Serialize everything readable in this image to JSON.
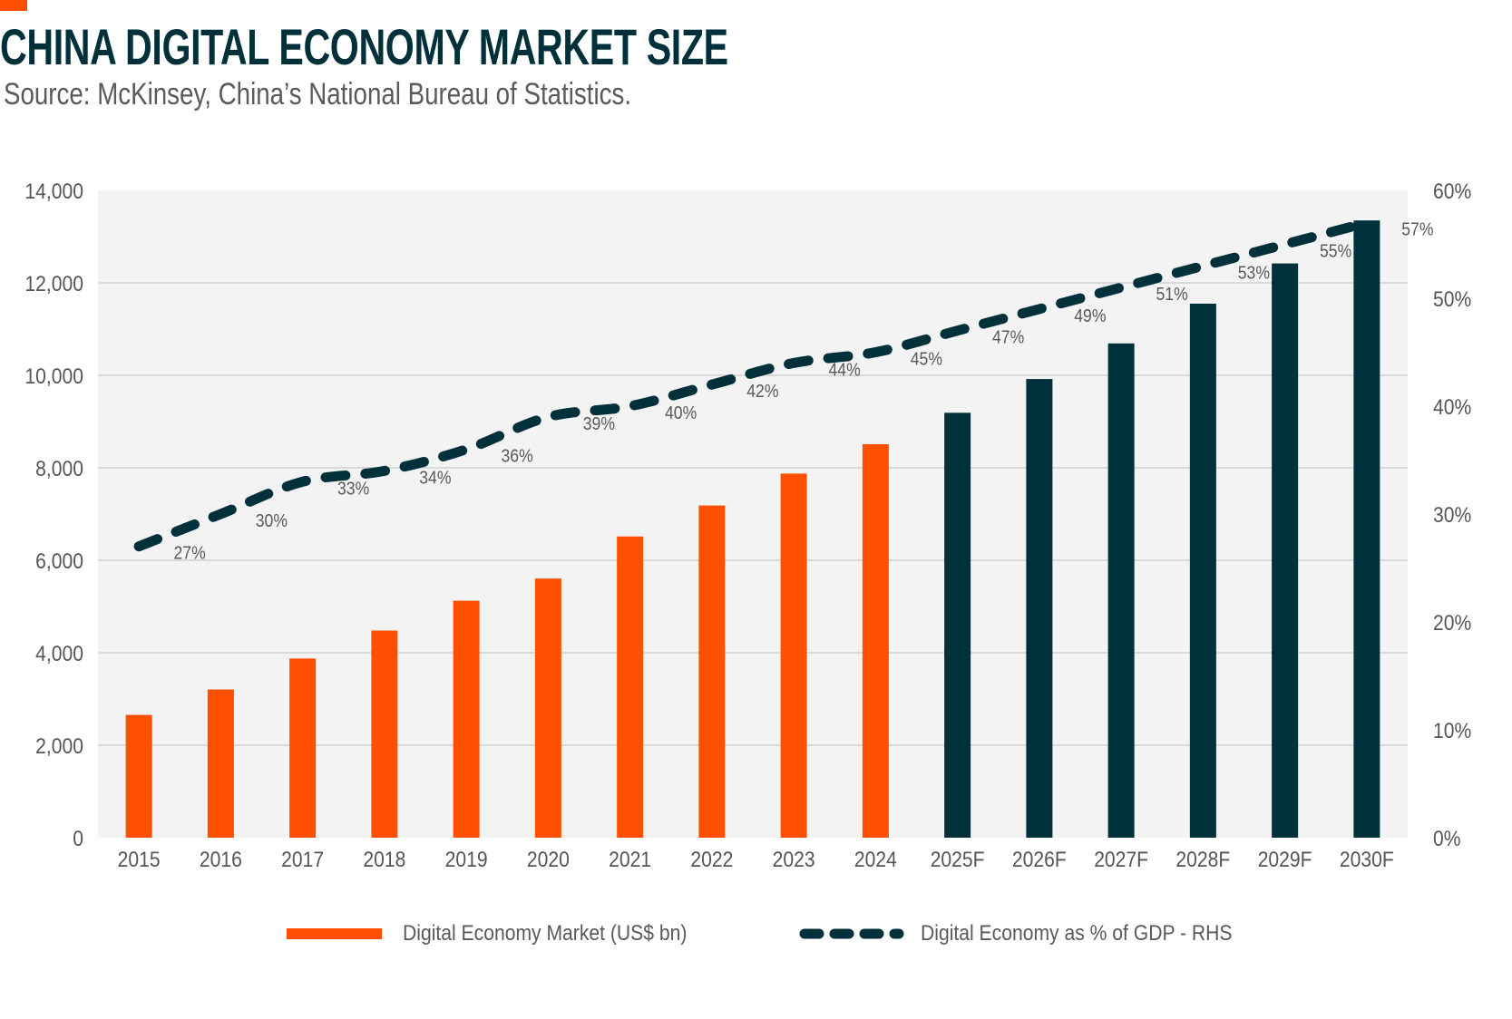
{
  "header": {
    "title": "CHINA DIGITAL ECONOMY MARKET SIZE",
    "subtitle": "Source: McKinsey, China’s National Bureau of Statistics."
  },
  "colors": {
    "accent": "#fe5000",
    "actual_bar": "#fe5000",
    "forecast_bar": "#00303a",
    "line": "#00303a",
    "plot_bg": "#f3f3f3",
    "grid": "#d9d9d9",
    "title": "#00303a"
  },
  "legend": {
    "items": [
      {
        "label": "Digital Economy Market (US$ bn)",
        "type": "bar"
      },
      {
        "label": "Digital Economy as % of GDP - RHS",
        "type": "dashed-line"
      }
    ]
  },
  "chart_data": {
    "type": "bar+line",
    "title": "CHINA DIGITAL ECONOMY MARKET SIZE",
    "subtitle": "Source: McKinsey, China’s National Bureau of Statistics.",
    "categories": [
      "2015",
      "2016",
      "2017",
      "2018",
      "2019",
      "2020",
      "2021",
      "2022",
      "2023",
      "2024",
      "2025F",
      "2026F",
      "2027F",
      "2028F",
      "2029F",
      "2030F"
    ],
    "series": [
      {
        "name": "Digital Economy Market (US$ bn)",
        "type": "bar",
        "axis": "left",
        "values": [
          2655,
          3205,
          3875,
          4480,
          5125,
          5605,
          6515,
          7185,
          7875,
          8510,
          9190,
          9920,
          10690,
          11550,
          12420,
          13350
        ],
        "forecast_from_index": 10
      },
      {
        "name": "Digital Economy as % of GDP - RHS",
        "type": "line",
        "style": "dashed",
        "axis": "right",
        "values": [
          27,
          30,
          33,
          34,
          36,
          39,
          40,
          42,
          44,
          45,
          47,
          49,
          51,
          53,
          55,
          57
        ],
        "data_labels": [
          "27%",
          "30%",
          "33%",
          "34%",
          "36%",
          "39%",
          "40%",
          "42%",
          "44%",
          "45%",
          "47%",
          "49%",
          "51%",
          "53%",
          "55%",
          "57%"
        ]
      }
    ],
    "y_left": {
      "label": "",
      "min": 0,
      "max": 14000,
      "ticks": [
        0,
        2000,
        4000,
        6000,
        8000,
        10000,
        12000,
        14000
      ],
      "tick_labels": [
        "0",
        "2,000",
        "4,000",
        "6,000",
        "8,000",
        "10,000",
        "12,000",
        "14,000"
      ]
    },
    "y_right": {
      "label": "",
      "min": 0,
      "max": 60,
      "ticks": [
        0,
        10,
        20,
        30,
        40,
        50,
        60
      ],
      "tick_labels": [
        "0%",
        "10%",
        "20%",
        "30%",
        "40%",
        "50%",
        "60%"
      ]
    },
    "xlabel": "",
    "grid": true,
    "legend_position": "bottom"
  }
}
